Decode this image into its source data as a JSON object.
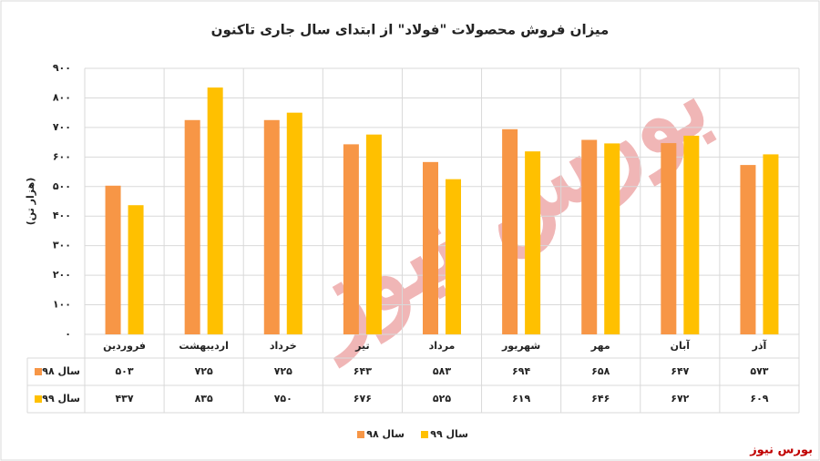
{
  "chart_data": {
    "type": "bar",
    "title": "میزان فروش محصولات \"فولاد\" از ابتدای سال جاری تاکنون",
    "y_label": "(هزار تن)",
    "categories": [
      "فروردین",
      "اردیبهشت",
      "خرداد",
      "تیر",
      "مرداد",
      "شهریور",
      "مهر",
      "آبان",
      "آذر"
    ],
    "series": [
      {
        "name": "سال ۹۸",
        "color": "#f79646",
        "values": [
          503,
          725,
          725,
          643,
          583,
          694,
          658,
          647,
          573
        ],
        "value_labels": [
          "۵۰۳",
          "۷۲۵",
          "۷۲۵",
          "۶۴۳",
          "۵۸۳",
          "۶۹۴",
          "۶۵۸",
          "۶۴۷",
          "۵۷۳"
        ]
      },
      {
        "name": "سال ۹۹",
        "color": "#ffc000",
        "values": [
          437,
          835,
          750,
          676,
          525,
          619,
          646,
          672,
          609
        ],
        "value_labels": [
          "۴۳۷",
          "۸۳۵",
          "۷۵۰",
          "۶۷۶",
          "۵۲۵",
          "۶۱۹",
          "۶۴۶",
          "۶۷۲",
          "۶۰۹"
        ]
      }
    ],
    "ylim": [
      0,
      900
    ],
    "yticks": [
      {
        "value": 0,
        "label": "۰"
      },
      {
        "value": 100,
        "label": "۱۰۰"
      },
      {
        "value": 200,
        "label": "۲۰۰"
      },
      {
        "value": 300,
        "label": "۳۰۰"
      },
      {
        "value": 400,
        "label": "۴۰۰"
      },
      {
        "value": 500,
        "label": "۵۰۰"
      },
      {
        "value": 600,
        "label": "۶۰۰"
      },
      {
        "value": 700,
        "label": "۷۰۰"
      },
      {
        "value": 800,
        "label": "۸۰۰"
      },
      {
        "value": 900,
        "label": "۹۰۰"
      }
    ],
    "grid": true
  },
  "watermark": "بورس نیوز",
  "source": "بورس نیوز"
}
